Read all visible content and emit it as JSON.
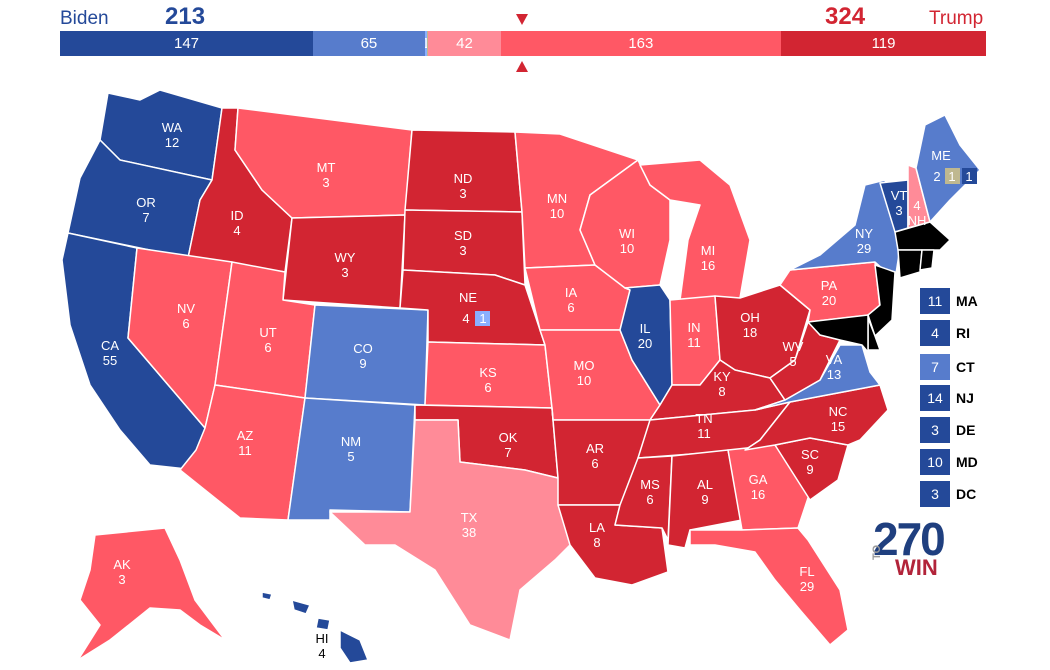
{
  "header": {
    "biden": {
      "name": "Biden",
      "total": "213"
    },
    "trump": {
      "name": "Trump",
      "total": "324"
    }
  },
  "bar": [
    {
      "id": "biden-safe",
      "value": 147,
      "label": "147",
      "color": "#244999"
    },
    {
      "id": "biden-likely",
      "value": 65,
      "label": "65",
      "color": "#577ccc"
    },
    {
      "id": "biden-lean",
      "value": 1,
      "label": "1",
      "color": "#8aafff"
    },
    {
      "id": "tossup",
      "value": 1,
      "label": "",
      "color": "#bfb890"
    },
    {
      "id": "trump-lean",
      "value": 42,
      "label": "42",
      "color": "#ff8b98"
    },
    {
      "id": "trump-likely",
      "value": 163,
      "label": "163",
      "color": "#ff5865"
    },
    {
      "id": "trump-safe",
      "value": 119,
      "label": "119",
      "color": "#d22532"
    }
  ],
  "colors": {
    "biden_safe": "#244999",
    "biden_likely": "#577ccc",
    "biden_lean": "#8aafff",
    "tossup": "#bfb890",
    "trump_lean": "#ff8b98",
    "trump_likely": "#ff5865",
    "trump_safe": "#d22532"
  },
  "states": {
    "WA": {
      "abbr": "WA",
      "ev": "12",
      "rating": "biden_safe"
    },
    "OR": {
      "abbr": "OR",
      "ev": "7",
      "rating": "biden_safe"
    },
    "CA": {
      "abbr": "CA",
      "ev": "55",
      "rating": "biden_safe"
    },
    "ID": {
      "abbr": "ID",
      "ev": "4",
      "rating": "trump_safe"
    },
    "NV": {
      "abbr": "NV",
      "ev": "6",
      "rating": "trump_likely"
    },
    "MT": {
      "abbr": "MT",
      "ev": "3",
      "rating": "trump_likely"
    },
    "WY": {
      "abbr": "WY",
      "ev": "3",
      "rating": "trump_safe"
    },
    "UT": {
      "abbr": "UT",
      "ev": "6",
      "rating": "trump_likely"
    },
    "AZ": {
      "abbr": "AZ",
      "ev": "11",
      "rating": "trump_likely"
    },
    "CO": {
      "abbr": "CO",
      "ev": "9",
      "rating": "biden_likely"
    },
    "NM": {
      "abbr": "NM",
      "ev": "5",
      "rating": "biden_likely"
    },
    "ND": {
      "abbr": "ND",
      "ev": "3",
      "rating": "trump_safe"
    },
    "SD": {
      "abbr": "SD",
      "ev": "3",
      "rating": "trump_safe"
    },
    "NE": {
      "abbr": "NE",
      "ev": "4",
      "rating": "trump_safe",
      "district_ev": "1"
    },
    "KS": {
      "abbr": "KS",
      "ev": "6",
      "rating": "trump_likely"
    },
    "OK": {
      "abbr": "OK",
      "ev": "7",
      "rating": "trump_safe"
    },
    "TX": {
      "abbr": "TX",
      "ev": "38",
      "rating": "trump_lean"
    },
    "MN": {
      "abbr": "MN",
      "ev": "10",
      "rating": "trump_likely"
    },
    "IA": {
      "abbr": "IA",
      "ev": "6",
      "rating": "trump_likely"
    },
    "MO": {
      "abbr": "MO",
      "ev": "10",
      "rating": "trump_likely"
    },
    "AR": {
      "abbr": "AR",
      "ev": "6",
      "rating": "trump_safe"
    },
    "LA": {
      "abbr": "LA",
      "ev": "8",
      "rating": "trump_safe"
    },
    "WI": {
      "abbr": "WI",
      "ev": "10",
      "rating": "trump_likely"
    },
    "IL": {
      "abbr": "IL",
      "ev": "20",
      "rating": "biden_safe"
    },
    "MI": {
      "abbr": "MI",
      "ev": "16",
      "rating": "trump_likely"
    },
    "IN": {
      "abbr": "IN",
      "ev": "11",
      "rating": "trump_likely"
    },
    "OH": {
      "abbr": "OH",
      "ev": "18",
      "rating": "trump_safe"
    },
    "KY": {
      "abbr": "KY",
      "ev": "8",
      "rating": "trump_safe"
    },
    "TN": {
      "abbr": "TN",
      "ev": "11",
      "rating": "trump_safe"
    },
    "MS": {
      "abbr": "MS",
      "ev": "6",
      "rating": "trump_safe"
    },
    "AL": {
      "abbr": "AL",
      "ev": "9",
      "rating": "trump_safe"
    },
    "GA": {
      "abbr": "GA",
      "ev": "16",
      "rating": "trump_likely"
    },
    "FL": {
      "abbr": "FL",
      "ev": "29",
      "rating": "trump_likely"
    },
    "SC": {
      "abbr": "SC",
      "ev": "9",
      "rating": "trump_safe"
    },
    "NC": {
      "abbr": "NC",
      "ev": "15",
      "rating": "trump_safe"
    },
    "VA": {
      "abbr": "VA",
      "ev": "13",
      "rating": "biden_likely"
    },
    "WV": {
      "abbr": "WV",
      "ev": "5",
      "rating": "trump_safe"
    },
    "PA": {
      "abbr": "PA",
      "ev": "20",
      "rating": "trump_likely"
    },
    "NY": {
      "abbr": "NY",
      "ev": "29",
      "rating": "biden_likely"
    },
    "VT": {
      "abbr": "VT",
      "ev": "3",
      "rating": "biden_safe"
    },
    "NH": {
      "abbr": "NH",
      "ev": "4",
      "rating": "trump_lean"
    },
    "ME": {
      "abbr": "ME",
      "ev_left": "2",
      "ev_mid": "1",
      "ev_right": "1",
      "rating": "biden_likely"
    },
    "AK": {
      "abbr": "AK",
      "ev": "3",
      "rating": "trump_likely"
    },
    "HI": {
      "abbr": "HI",
      "ev": "4",
      "rating": "biden_safe"
    }
  },
  "small_states": [
    {
      "abbr": "MA",
      "ev": "11",
      "rating": "biden_safe"
    },
    {
      "abbr": "RI",
      "ev": "4",
      "rating": "biden_safe"
    },
    {
      "abbr": "CT",
      "ev": "7",
      "rating": "biden_likely"
    },
    {
      "abbr": "NJ",
      "ev": "14",
      "rating": "biden_safe"
    },
    {
      "abbr": "DE",
      "ev": "3",
      "rating": "biden_safe"
    },
    {
      "abbr": "MD",
      "ev": "10",
      "rating": "biden_safe"
    },
    {
      "abbr": "DC",
      "ev": "3",
      "rating": "biden_safe"
    }
  ],
  "logo": {
    "number": "270",
    "to": "TO",
    "win": "WIN"
  }
}
